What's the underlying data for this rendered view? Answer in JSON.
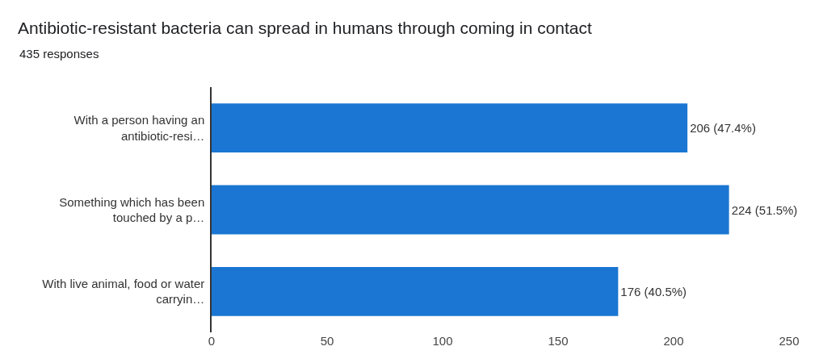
{
  "chart_data": {
    "type": "bar",
    "orientation": "horizontal",
    "title": "Antibiotic-resistant bacteria can spread in humans through coming in contact",
    "subtitle": "435 responses",
    "categories": [
      "With a person having an\nantibiotic-resi…",
      "Something which has been\ntouched by a p…",
      "With live animal, food or water\ncarryin…"
    ],
    "values": [
      206,
      224,
      176
    ],
    "value_labels": [
      "206 (47.4%)",
      "224 (51.5%)",
      "176 (40.5%)"
    ],
    "color": "#1a76d2",
    "xlim": [
      0,
      250
    ],
    "xticks": [
      0,
      50,
      100,
      150,
      200,
      250
    ],
    "grid": false
  }
}
